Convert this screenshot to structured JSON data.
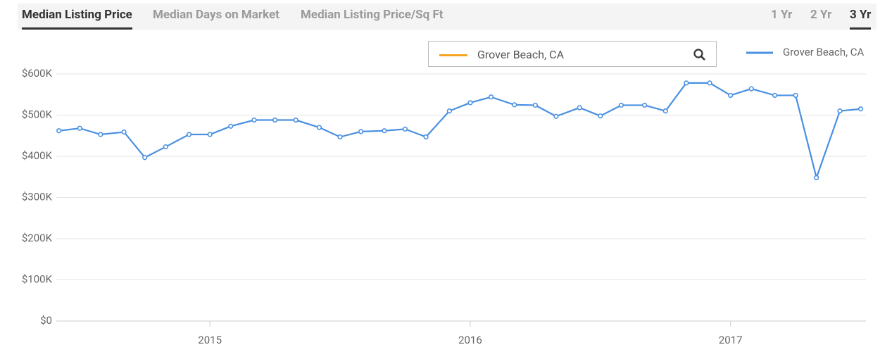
{
  "tabs": [
    "Median Listing Price",
    "Median Days on Market",
    "Median Listing Price/Sq Ft"
  ],
  "ranges": [
    "1 Yr",
    "2 Yr",
    "3 Yr"
  ],
  "search": {
    "value": "Grover Beach, CA"
  },
  "chart_data": {
    "type": "line",
    "x": [
      2014.42,
      2014.5,
      2014.58,
      2014.67,
      2014.75,
      2014.83,
      2014.92,
      2015.0,
      2015.08,
      2015.17,
      2015.25,
      2015.33,
      2015.42,
      2015.5,
      2015.58,
      2015.67,
      2015.75,
      2015.83,
      2015.92,
      2016.0,
      2016.08,
      2016.17,
      2016.25,
      2016.33,
      2016.42,
      2016.5,
      2016.58,
      2016.67,
      2016.75,
      2016.83,
      2016.92,
      2017.0,
      2017.08,
      2017.17,
      2017.25,
      2017.33,
      2017.42,
      2017.5
    ],
    "series": [
      {
        "name": "Grover Beach, CA",
        "color": "#4a90e2",
        "values": [
          462000,
          468000,
          453000,
          459000,
          397000,
          423000,
          453000,
          453000,
          473000,
          488000,
          488000,
          488000,
          470000,
          447000,
          460000,
          462000,
          466000,
          447000,
          510000,
          530000,
          544000,
          525000,
          524000,
          497000,
          518000,
          498000,
          524000,
          524000,
          510000,
          578000,
          578000,
          548000,
          564000,
          548000,
          548000,
          348000,
          510000,
          515000
        ]
      }
    ],
    "xlim": [
      2014.41,
      2017.52
    ],
    "xticks": [
      2015,
      2016,
      2017
    ],
    "ylim": [
      0,
      600000
    ],
    "yticks": [
      {
        "value": 0,
        "label": "$0"
      },
      {
        "value": 100000,
        "label": "$100K"
      },
      {
        "value": 200000,
        "label": "$200K"
      },
      {
        "value": 300000,
        "label": "$300K"
      },
      {
        "value": 400000,
        "label": "$400K"
      },
      {
        "value": 500000,
        "label": "$500K"
      },
      {
        "value": 600000,
        "label": "$600K"
      }
    ],
    "grid": true
  }
}
